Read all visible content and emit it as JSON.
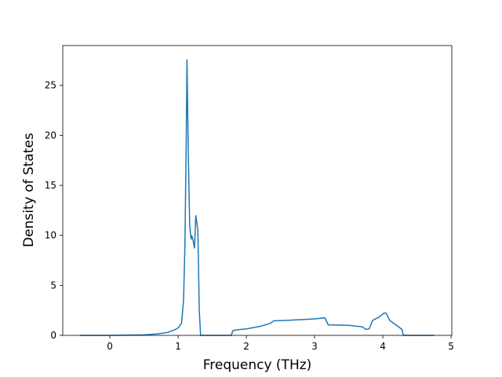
{
  "chart_data": {
    "type": "line",
    "x_label": "Frequency (THz)",
    "y_label": "Density of States",
    "x": [
      -0.44,
      0.0,
      0.5,
      0.7,
      0.85,
      0.95,
      1.0,
      1.05,
      1.08,
      1.1,
      1.12,
      1.13,
      1.15,
      1.17,
      1.19,
      1.2,
      1.22,
      1.24,
      1.26,
      1.28,
      1.29,
      1.31,
      1.33,
      1.78,
      1.8,
      1.85,
      2.0,
      2.2,
      2.35,
      2.4,
      2.6,
      3.0,
      3.15,
      3.2,
      3.5,
      3.7,
      3.75,
      3.8,
      3.85,
      3.95,
      4.02,
      4.05,
      4.1,
      4.2,
      4.28,
      4.3,
      4.75
    ],
    "series": [
      {
        "color": "#1f77b4",
        "values": [
          0,
          0,
          0.05,
          0.15,
          0.3,
          0.55,
          0.75,
          1.2,
          3.5,
          9,
          20,
          27.6,
          18,
          11,
          9.6,
          10,
          9.5,
          8.7,
          12,
          11,
          10.5,
          2.5,
          0,
          0,
          0.45,
          0.55,
          0.65,
          0.9,
          1.2,
          1.45,
          1.5,
          1.65,
          1.75,
          1.05,
          1.0,
          0.85,
          0.6,
          0.65,
          1.5,
          1.85,
          2.25,
          2.2,
          1.5,
          1.0,
          0.6,
          0,
          0
        ]
      }
    ],
    "xlim": [
      -0.69,
      5.01
    ],
    "ylim": [
      0,
      28.98
    ],
    "xticks": [
      0,
      1,
      2,
      3,
      4,
      5
    ],
    "yticks": [
      0,
      5,
      10,
      15,
      20,
      25
    ]
  }
}
